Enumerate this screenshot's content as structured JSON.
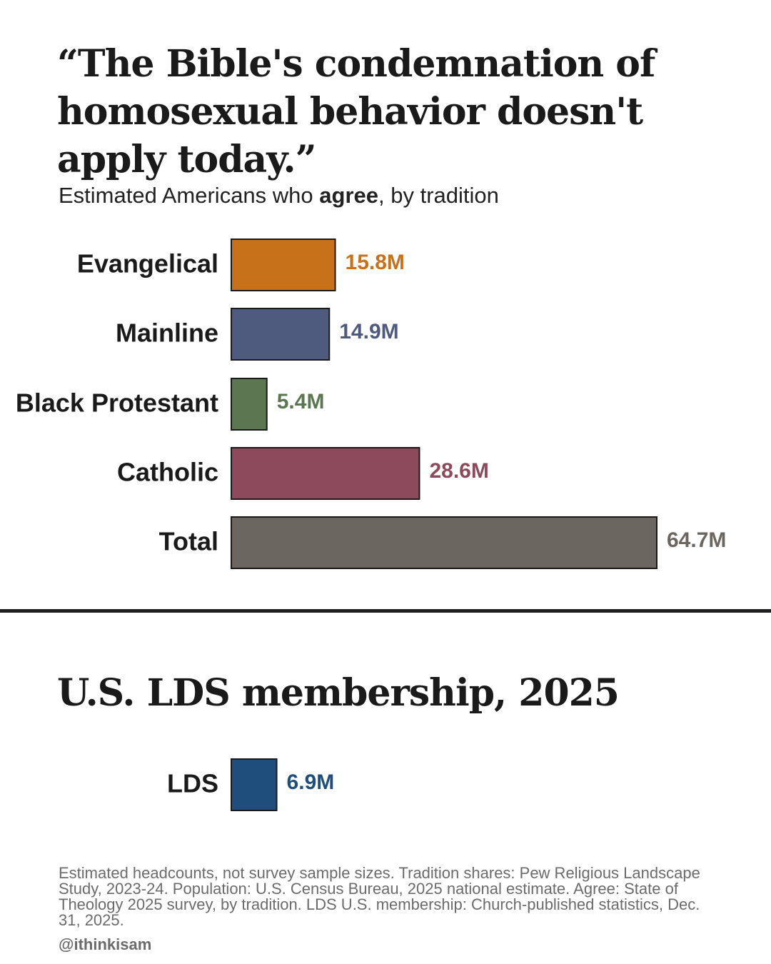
{
  "header": {
    "title": "“The Bible's condemnation of homosexual behavior doesn't apply today.”",
    "subtitle_before": "Estimated Americans who ",
    "subtitle_bold": "agree",
    "subtitle_after": ", by tradition"
  },
  "section2": {
    "title": "U.S. LDS membership, 2025"
  },
  "chart_data": [
    {
      "type": "bar",
      "orientation": "horizontal",
      "categories": [
        "Evangelical",
        "Mainline",
        "Black Protestant",
        "Catholic",
        "Total"
      ],
      "values": [
        15.8,
        14.9,
        5.4,
        28.6,
        64.7
      ],
      "value_labels": [
        "15.8M",
        "14.9M",
        "5.4M",
        "28.6M",
        "64.7M"
      ],
      "colors": [
        "#c8711b",
        "#4f5b7e",
        "#5b7651",
        "#8c4a5c",
        "#6b6660"
      ],
      "unit": "M"
    },
    {
      "type": "bar",
      "orientation": "horizontal",
      "categories": [
        "LDS"
      ],
      "values": [
        6.9
      ],
      "value_labels": [
        "6.9M"
      ],
      "colors": [
        "#1f4e7c"
      ],
      "unit": "M"
    }
  ],
  "footer": {
    "note": "Estimated headcounts, not survey sample sizes. Tradition shares: Pew Religious Landscape Study, 2023-24. Population: U.S. Census Bureau, 2025 national estimate. Agree: State of Theology 2025 survey, by tradition. LDS U.S. membership: Church-published statistics, Dec. 31, 2025.",
    "credit": "@ithinkisam"
  }
}
